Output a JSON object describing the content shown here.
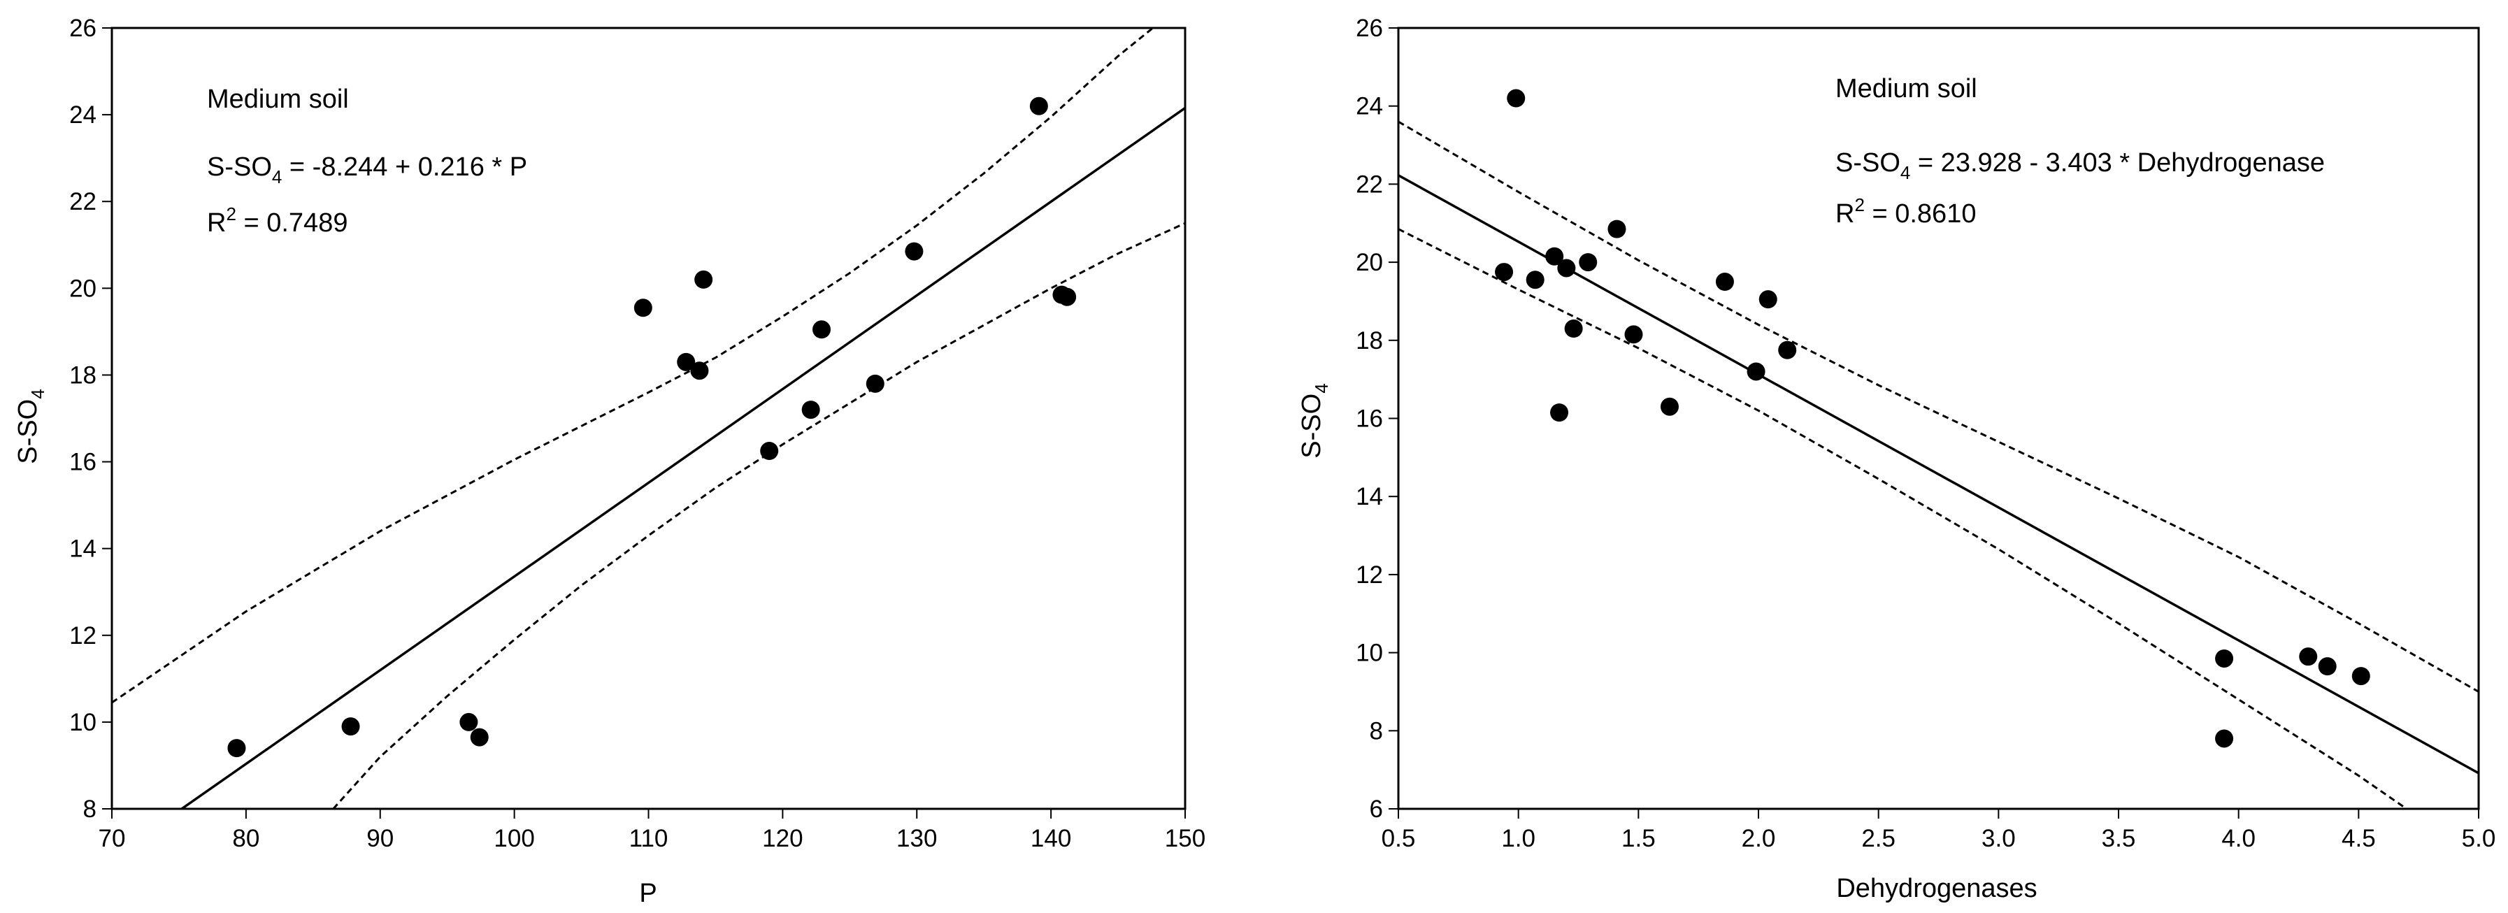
{
  "chart_data": [
    {
      "type": "scatter",
      "annotation_title": "Medium soil",
      "equation_prefix": "S-SO",
      "equation_sub": "4",
      "equation_rest": " = -8.244 + 0.216 * P",
      "r2_prefix": "R",
      "r2_sup": "2",
      "r2_rest": " = 0.7489",
      "xlabel": "P",
      "ylabel_main": "S-SO",
      "ylabel_sub": "4",
      "xlim": [
        70,
        150
      ],
      "ylim": [
        8,
        26
      ],
      "xticks": [
        "70",
        "80",
        "90",
        "100",
        "110",
        "120",
        "130",
        "140",
        "150"
      ],
      "yticks": [
        "8",
        "10",
        "12",
        "14",
        "16",
        "18",
        "20",
        "22",
        "24",
        "26"
      ],
      "grid": false,
      "regression": {
        "intercept": -8.244,
        "slope": 0.216
      },
      "confidence_upper": [
        [
          70,
          10.45
        ],
        [
          80,
          12.55
        ],
        [
          90,
          14.4
        ],
        [
          100,
          16.05
        ],
        [
          110,
          17.6
        ],
        [
          115,
          18.4
        ],
        [
          120,
          19.35
        ],
        [
          125,
          20.35
        ],
        [
          130,
          21.45
        ],
        [
          135,
          22.65
        ],
        [
          140,
          23.95
        ],
        [
          145,
          25.35
        ],
        [
          148,
          26.1
        ]
      ],
      "confidence_lower": [
        [
          86.5,
          8.0
        ],
        [
          90,
          9.2
        ],
        [
          95,
          10.6
        ],
        [
          100,
          11.9
        ],
        [
          105,
          13.15
        ],
        [
          110,
          14.3
        ],
        [
          115,
          15.4
        ],
        [
          120,
          16.4
        ],
        [
          125,
          17.35
        ],
        [
          130,
          18.3
        ],
        [
          135,
          19.15
        ],
        [
          140,
          20.0
        ],
        [
          145,
          20.8
        ],
        [
          150,
          21.5
        ]
      ],
      "points": [
        [
          79.3,
          9.4
        ],
        [
          87.8,
          9.9
        ],
        [
          96.6,
          10.0
        ],
        [
          97.4,
          9.65
        ],
        [
          109.6,
          19.55
        ],
        [
          112.8,
          18.3
        ],
        [
          113.8,
          18.1
        ],
        [
          114.1,
          20.2
        ],
        [
          119.0,
          16.25
        ],
        [
          122.1,
          17.2
        ],
        [
          122.9,
          19.05
        ],
        [
          126.9,
          17.8
        ],
        [
          129.8,
          20.85
        ],
        [
          139.1,
          24.2
        ],
        [
          140.8,
          19.85
        ],
        [
          141.2,
          19.8
        ]
      ]
    },
    {
      "type": "scatter",
      "annotation_title": "Medium soil",
      "equation_prefix": "S-SO",
      "equation_sub": "4",
      "equation_rest": " = 23.928 - 3.403 * Dehydrogenase",
      "r2_prefix": "R",
      "r2_sup": "2",
      "r2_rest": " = 0.8610",
      "xlabel": "Dehydrogenases",
      "ylabel_main": "S-SO",
      "ylabel_sub": "4",
      "xlim": [
        0.5,
        5.0
      ],
      "ylim": [
        6,
        26
      ],
      "xticks": [
        "0.5",
        "1.0",
        "1.5",
        "2.0",
        "2.5",
        "3.0",
        "3.5",
        "4.0",
        "4.5",
        "5.0"
      ],
      "yticks": [
        "6",
        "8",
        "10",
        "12",
        "14",
        "16",
        "18",
        "20",
        "22",
        "24",
        "26"
      ],
      "grid": false,
      "regression": {
        "intercept": 23.928,
        "slope": -3.403
      },
      "confidence_upper": [
        [
          0.5,
          23.6
        ],
        [
          1.0,
          21.8
        ],
        [
          1.5,
          20.05
        ],
        [
          2.0,
          18.4
        ],
        [
          2.5,
          16.85
        ],
        [
          3.0,
          15.4
        ],
        [
          3.5,
          13.95
        ],
        [
          4.0,
          12.45
        ],
        [
          4.5,
          10.75
        ],
        [
          5.0,
          9.0
        ]
      ],
      "confidence_lower": [
        [
          0.5,
          20.85
        ],
        [
          1.0,
          19.3
        ],
        [
          1.5,
          17.8
        ],
        [
          2.0,
          16.2
        ],
        [
          2.5,
          14.45
        ],
        [
          3.0,
          12.65
        ],
        [
          3.5,
          10.75
        ],
        [
          4.0,
          8.8
        ],
        [
          4.5,
          6.85
        ],
        [
          4.7,
          6.0
        ]
      ],
      "points": [
        [
          0.94,
          19.75
        ],
        [
          0.99,
          24.2
        ],
        [
          1.07,
          19.55
        ],
        [
          1.15,
          20.15
        ],
        [
          1.17,
          16.15
        ],
        [
          1.2,
          19.85
        ],
        [
          1.23,
          18.3
        ],
        [
          1.29,
          20.0
        ],
        [
          1.41,
          20.85
        ],
        [
          1.48,
          18.15
        ],
        [
          1.63,
          16.3
        ],
        [
          1.86,
          19.5
        ],
        [
          1.99,
          17.2
        ],
        [
          2.04,
          19.05
        ],
        [
          2.12,
          17.75
        ],
        [
          3.94,
          9.85
        ],
        [
          3.94,
          7.8
        ],
        [
          4.29,
          9.9
        ],
        [
          4.37,
          9.65
        ],
        [
          4.51,
          9.4
        ]
      ]
    }
  ]
}
